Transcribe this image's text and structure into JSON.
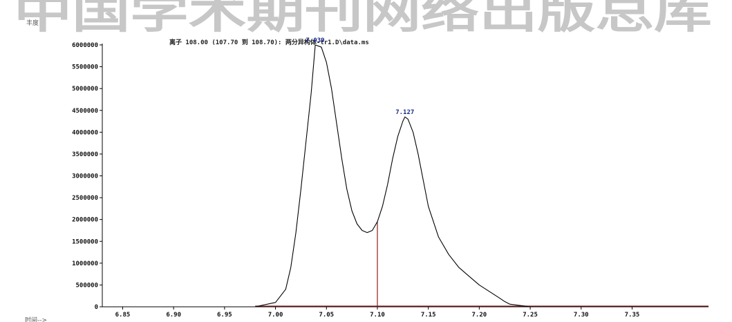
{
  "header": {
    "watermark": "中国学术期刊网络出版总库",
    "ylabel": "丰度",
    "title": "离子 108.00 (107.70 到 108.70): 两分异构体-tr1.D\\data.ms",
    "xlabel": "时间-->"
  },
  "colors": {
    "trace": "#000000",
    "baseline": "#8b1a1a",
    "peak_label": "#1a2a8a",
    "axis": "#000000"
  },
  "chart_data": {
    "type": "line",
    "title": "离子 108.00 (107.70 到 108.70): 两分异构体-tr1.D\\data.ms",
    "xlabel": "时间-->",
    "ylabel": "丰度",
    "xlim": [
      6.83,
      7.425
    ],
    "ylim": [
      0,
      6000000
    ],
    "x_ticks": [
      6.85,
      6.9,
      6.95,
      7.0,
      7.05,
      7.1,
      7.15,
      7.2,
      7.25,
      7.3,
      7.35
    ],
    "x_tick_labels": [
      "6.85",
      "6.90",
      "6.95",
      "7.00",
      "7.05",
      "7.10",
      "7.15",
      "7.20",
      "7.25",
      "7.30",
      "7.35"
    ],
    "y_ticks": [
      0,
      500000,
      1000000,
      1500000,
      2000000,
      2500000,
      3000000,
      3500000,
      4000000,
      4500000,
      5000000,
      5500000,
      6000000
    ],
    "y_tick_labels": [
      "0",
      "500000",
      "1000000",
      "1500000",
      "2000000",
      "2500000",
      "3000000",
      "3500000",
      "4000000",
      "4500000",
      "5000000",
      "5500000",
      "6000000"
    ],
    "peaks": [
      {
        "label": "7.039",
        "x": 7.039,
        "y": 6000000
      },
      {
        "label": "7.127",
        "x": 7.127,
        "y": 4350000
      }
    ],
    "split_x": 7.1,
    "series": [
      {
        "x": [
          6.83,
          6.9,
          6.98,
          7.0,
          7.01,
          7.015,
          7.02,
          7.025,
          7.03,
          7.035,
          7.039,
          7.045,
          7.05,
          7.055,
          7.06,
          7.065,
          7.07,
          7.075,
          7.08,
          7.085,
          7.09,
          7.095,
          7.1,
          7.105,
          7.11,
          7.115,
          7.12,
          7.125,
          7.127,
          7.13,
          7.135,
          7.14,
          7.145,
          7.15,
          7.16,
          7.17,
          7.18,
          7.19,
          7.2,
          7.21,
          7.22,
          7.225,
          7.23,
          7.25,
          7.3,
          7.35,
          7.425
        ],
        "y": [
          0,
          0,
          0,
          100000,
          400000,
          900000,
          1700000,
          2700000,
          3800000,
          4900000,
          6000000,
          5950000,
          5600000,
          5000000,
          4200000,
          3400000,
          2700000,
          2200000,
          1900000,
          1750000,
          1700000,
          1750000,
          1950000,
          2300000,
          2800000,
          3400000,
          3900000,
          4250000,
          4350000,
          4300000,
          4000000,
          3500000,
          2900000,
          2300000,
          1600000,
          1200000,
          900000,
          700000,
          500000,
          350000,
          200000,
          120000,
          60000,
          0,
          0,
          0,
          0
        ]
      }
    ]
  }
}
